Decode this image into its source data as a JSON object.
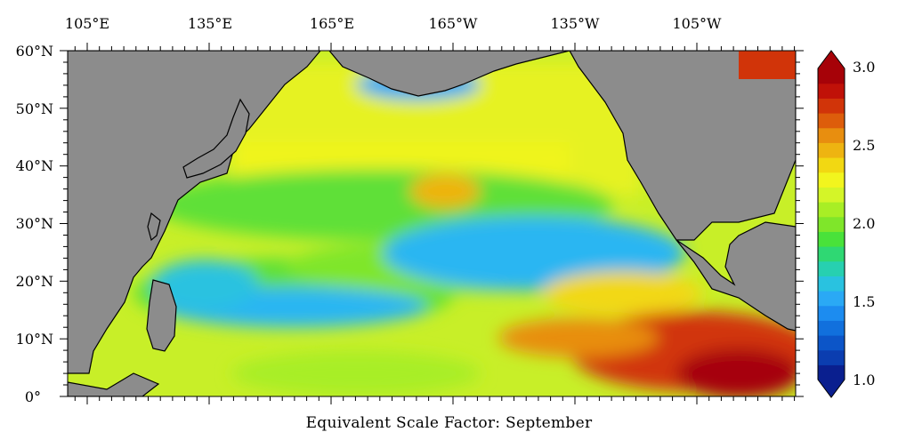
{
  "title": "Equivalent Scale Factor: September",
  "lon_ticks": [
    "105°E",
    "135°E",
    "165°E",
    "165°W",
    "135°W",
    "105°W"
  ],
  "lat_ticks": [
    "60°N",
    "50°N",
    "40°N",
    "30°N",
    "20°N",
    "10°N",
    "0°"
  ],
  "colorbar": {
    "labels": [
      "3.0",
      "2.5",
      "2.0",
      "1.5",
      "1.0"
    ],
    "min": 1.0,
    "max": 3.0,
    "colors_low_to_high": [
      "#0a1f8f",
      "#0b3db0",
      "#0c55c8",
      "#1170dd",
      "#1c8cf0",
      "#2aa9f5",
      "#29c2e0",
      "#27d0b0",
      "#2fd873",
      "#49e23a",
      "#7fe62a",
      "#a8ee25",
      "#d4f528",
      "#f2f51e",
      "#f2d812",
      "#eeb411",
      "#e88e0f",
      "#dd5d0b",
      "#d13409",
      "#c01108",
      "#a60208"
    ],
    "land_color": "#8c8c8c"
  },
  "map": {
    "lon_range": [
      "100°E",
      "80°W"
    ],
    "lat_range": [
      "0°",
      "60°N"
    ]
  }
}
